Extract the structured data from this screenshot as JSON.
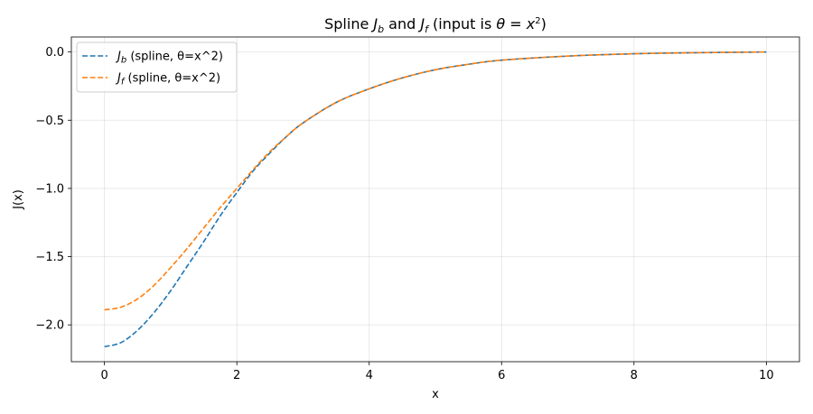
{
  "chart_data": {
    "type": "line",
    "title": "Spline J_b and J_f (input is θ = x²)",
    "xlabel": "x",
    "ylabel": "J(x)",
    "xlim": [
      -0.5,
      10.5
    ],
    "ylim": [
      -2.27,
      0.11
    ],
    "xticks": [
      0,
      2,
      4,
      6,
      8,
      10
    ],
    "yticks": [
      0.0,
      -0.5,
      -1.0,
      -1.5,
      -2.0
    ],
    "xtick_labels": [
      "0",
      "2",
      "4",
      "6",
      "8",
      "10"
    ],
    "ytick_labels": [
      "0.0",
      "−0.5",
      "−1.0",
      "−1.5",
      "−2.0"
    ],
    "grid": true,
    "legend": "top-left",
    "series": [
      {
        "name": "J_b (spline, θ=x^2)",
        "legend_main": "J",
        "legend_sub": "b",
        "legend_rest": " (spline, θ=x^2)",
        "color": "#1f77b4",
        "dash": "dashed",
        "x": [
          0,
          0.25,
          0.5,
          0.75,
          1,
          1.25,
          1.5,
          1.75,
          2,
          2.25,
          2.5,
          2.75,
          3,
          3.5,
          4,
          4.5,
          5,
          5.5,
          6,
          7,
          8,
          9,
          10
        ],
        "y": [
          -2.16,
          -2.13,
          -2.04,
          -1.91,
          -1.75,
          -1.57,
          -1.39,
          -1.2,
          -1.03,
          -0.87,
          -0.74,
          -0.62,
          -0.52,
          -0.37,
          -0.27,
          -0.19,
          -0.13,
          -0.09,
          -0.06,
          -0.03,
          -0.013,
          -0.005,
          0.0
        ]
      },
      {
        "name": "J_f (spline, θ=x^2)",
        "legend_main": "J",
        "legend_sub": "f",
        "legend_rest": " (spline, θ=x^2)",
        "color": "#ff7f0e",
        "dash": "dashed",
        "x": [
          0,
          0.25,
          0.5,
          0.75,
          1,
          1.25,
          1.5,
          1.75,
          2,
          2.25,
          2.5,
          2.75,
          3,
          3.5,
          4,
          4.5,
          5,
          5.5,
          6,
          7,
          8,
          9,
          10
        ],
        "y": [
          -1.89,
          -1.87,
          -1.81,
          -1.71,
          -1.58,
          -1.44,
          -1.29,
          -1.14,
          -1.0,
          -0.86,
          -0.73,
          -0.62,
          -0.52,
          -0.37,
          -0.27,
          -0.19,
          -0.13,
          -0.09,
          -0.06,
          -0.03,
          -0.013,
          -0.005,
          0.0
        ]
      }
    ]
  }
}
